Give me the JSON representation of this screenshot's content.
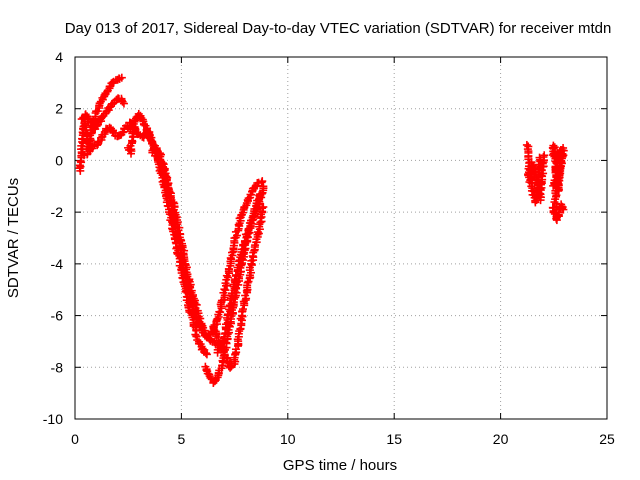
{
  "chart_data": {
    "type": "scatter",
    "title": "Day 013 of 2017, Sidereal Day-to-day VTEC variation (SDTVAR) for receiver mtdn",
    "xlabel": "GPS time / hours",
    "ylabel": "SDTVAR / TECUs",
    "xlim": [
      0,
      25
    ],
    "ylim": [
      -10,
      4
    ],
    "xticks": [
      0,
      5,
      10,
      15,
      20,
      25
    ],
    "yticks": [
      -10,
      -8,
      -6,
      -4,
      -2,
      0,
      2,
      4
    ],
    "grid": true,
    "marker": "+",
    "marker_color": "#ff0000",
    "series": [
      {
        "name": "SDTVAR",
        "segments": [
          [
            [
              0.25,
              -0.4
            ],
            [
              0.35,
              0.8
            ],
            [
              0.45,
              1.5
            ],
            [
              0.55,
              1.0
            ],
            [
              0.65,
              0.4
            ],
            [
              0.8,
              1.2
            ],
            [
              1.0,
              1.8
            ],
            [
              1.2,
              2.2
            ],
            [
              1.4,
              2.5
            ],
            [
              1.6,
              2.8
            ],
            [
              1.8,
              3.0
            ],
            [
              2.0,
              3.15
            ],
            [
              2.2,
              3.2
            ]
          ],
          [
            [
              0.3,
              1.6
            ],
            [
              0.5,
              1.8
            ],
            [
              0.7,
              1.5
            ],
            [
              0.9,
              1.2
            ],
            [
              1.1,
              1.4
            ],
            [
              1.3,
              1.7
            ],
            [
              1.5,
              1.9
            ],
            [
              1.7,
              2.1
            ],
            [
              1.9,
              2.3
            ],
            [
              2.1,
              2.4
            ],
            [
              2.3,
              2.2
            ]
          ],
          [
            [
              0.4,
              0.2
            ],
            [
              0.6,
              0.3
            ],
            [
              0.8,
              0.5
            ],
            [
              1.0,
              0.6
            ],
            [
              1.2,
              0.8
            ],
            [
              1.4,
              1.1
            ],
            [
              1.6,
              1.3
            ],
            [
              1.8,
              1.1
            ],
            [
              2.0,
              0.9
            ],
            [
              2.2,
              1.0
            ],
            [
              2.4,
              1.3
            ],
            [
              2.6,
              1.2
            ]
          ],
          [
            [
              2.5,
              0.5
            ],
            [
              2.6,
              0.3
            ],
            [
              2.7,
              0.8
            ],
            [
              2.8,
              1.4
            ],
            [
              3.0,
              1.8
            ],
            [
              3.2,
              1.5
            ],
            [
              3.4,
              1.2
            ],
            [
              3.6,
              0.8
            ],
            [
              3.8,
              0.4
            ],
            [
              4.0,
              0.0
            ],
            [
              4.2,
              -0.4
            ],
            [
              4.4,
              -1.0
            ],
            [
              4.6,
              -1.6
            ],
            [
              4.8,
              -2.4
            ],
            [
              5.0,
              -3.2
            ],
            [
              5.2,
              -4.0
            ],
            [
              5.4,
              -4.8
            ],
            [
              5.6,
              -5.4
            ],
            [
              5.8,
              -6.0
            ],
            [
              6.0,
              -6.5
            ],
            [
              6.2,
              -6.8
            ],
            [
              6.4,
              -7.0
            ],
            [
              6.6,
              -7.1
            ]
          ],
          [
            [
              2.6,
              1.5
            ],
            [
              2.8,
              1.2
            ],
            [
              3.0,
              1.0
            ],
            [
              3.2,
              0.9
            ],
            [
              3.4,
              1.2
            ],
            [
              3.6,
              0.7
            ],
            [
              3.8,
              0.2
            ],
            [
              4.0,
              -0.3
            ],
            [
              4.2,
              -1.0
            ],
            [
              4.4,
              -1.8
            ],
            [
              4.6,
              -2.6
            ],
            [
              4.8,
              -3.4
            ],
            [
              5.0,
              -4.2
            ],
            [
              5.2,
              -5.0
            ],
            [
              5.4,
              -5.8
            ],
            [
              5.6,
              -6.4
            ],
            [
              5.8,
              -7.0
            ],
            [
              6.0,
              -7.3
            ],
            [
              6.2,
              -7.5
            ]
          ],
          [
            [
              3.6,
              0.3
            ],
            [
              3.8,
              0.5
            ],
            [
              4.0,
              0.2
            ],
            [
              4.2,
              -0.4
            ],
            [
              4.4,
              -1.2
            ],
            [
              4.6,
              -2.0
            ],
            [
              4.8,
              -2.9
            ],
            [
              5.0,
              -3.8
            ],
            [
              5.2,
              -4.6
            ],
            [
              5.4,
              -5.3
            ],
            [
              5.6,
              -5.9
            ],
            [
              5.8,
              -6.3
            ],
            [
              6.0,
              -6.6
            ],
            [
              6.2,
              -6.8
            ],
            [
              6.4,
              -6.7
            ],
            [
              6.6,
              -6.4
            ],
            [
              6.8,
              -5.9
            ],
            [
              7.0,
              -5.2
            ],
            [
              7.2,
              -4.4
            ],
            [
              7.4,
              -3.6
            ],
            [
              7.6,
              -2.8
            ],
            [
              7.8,
              -2.2
            ],
            [
              8.0,
              -1.8
            ],
            [
              8.2,
              -1.4
            ],
            [
              8.4,
              -1.1
            ],
            [
              8.6,
              -0.9
            ],
            [
              8.8,
              -0.8
            ]
          ],
          [
            [
              6.1,
              -8.0
            ],
            [
              6.3,
              -8.3
            ],
            [
              6.5,
              -8.6
            ],
            [
              6.7,
              -8.4
            ],
            [
              6.9,
              -7.9
            ],
            [
              7.1,
              -7.2
            ],
            [
              7.3,
              -6.3
            ],
            [
              7.5,
              -5.4
            ],
            [
              7.7,
              -4.5
            ],
            [
              7.9,
              -3.7
            ],
            [
              8.1,
              -3.0
            ],
            [
              8.3,
              -2.4
            ],
            [
              8.5,
              -1.8
            ],
            [
              8.7,
              -1.3
            ]
          ],
          [
            [
              6.5,
              -6.4
            ],
            [
              6.7,
              -6.9
            ],
            [
              6.9,
              -7.3
            ],
            [
              7.1,
              -7.6
            ],
            [
              7.3,
              -8.0
            ],
            [
              7.5,
              -7.8
            ],
            [
              7.7,
              -6.8
            ],
            [
              7.9,
              -5.8
            ],
            [
              8.1,
              -4.9
            ],
            [
              8.3,
              -4.0
            ],
            [
              8.5,
              -3.2
            ],
            [
              8.7,
              -2.5
            ],
            [
              8.85,
              -1.8
            ]
          ],
          [
            [
              6.7,
              -7.4
            ],
            [
              6.9,
              -7.1
            ],
            [
              7.1,
              -6.5
            ],
            [
              7.3,
              -5.6
            ],
            [
              7.5,
              -4.8
            ],
            [
              7.7,
              -4.0
            ],
            [
              7.9,
              -3.4
            ],
            [
              8.1,
              -2.8
            ],
            [
              8.3,
              -2.3
            ],
            [
              8.5,
              -2.0
            ],
            [
              8.7,
              -1.5
            ],
            [
              8.85,
              -1.0
            ]
          ],
          [
            [
              21.25,
              0.6
            ],
            [
              21.3,
              0.2
            ],
            [
              21.35,
              -0.3
            ],
            [
              21.4,
              -0.8
            ],
            [
              21.5,
              -0.1
            ],
            [
              21.6,
              -0.4
            ],
            [
              21.7,
              -0.8
            ],
            [
              21.8,
              -1.2
            ],
            [
              21.85,
              -1.5
            ],
            [
              21.9,
              -1.1
            ],
            [
              21.95,
              -0.5
            ],
            [
              22.0,
              -0.2
            ],
            [
              22.05,
              0.2
            ]
          ],
          [
            [
              21.3,
              -0.5
            ],
            [
              21.45,
              -0.9
            ],
            [
              21.55,
              -1.3
            ],
            [
              21.65,
              -1.6
            ],
            [
              21.75,
              -1.1
            ],
            [
              21.85,
              0.1
            ],
            [
              21.95,
              -0.1
            ]
          ],
          [
            [
              22.45,
              0.2
            ],
            [
              22.5,
              0.6
            ],
            [
              22.55,
              0.3
            ],
            [
              22.6,
              -0.2
            ],
            [
              22.65,
              -0.8
            ],
            [
              22.7,
              -1.2
            ],
            [
              22.75,
              -0.6
            ],
            [
              22.8,
              -0.1
            ],
            [
              22.85,
              0.3
            ],
            [
              22.9,
              0.5
            ],
            [
              22.95,
              0.2
            ]
          ],
          [
            [
              22.45,
              -1.8
            ],
            [
              22.55,
              -2.1
            ],
            [
              22.65,
              -2.3
            ],
            [
              22.75,
              -2.0
            ],
            [
              22.85,
              -1.7
            ],
            [
              22.95,
              -1.9
            ]
          ],
          [
            [
              22.5,
              -1.0
            ],
            [
              22.6,
              -0.5
            ],
            [
              22.7,
              0.0
            ],
            [
              22.8,
              0.4
            ],
            [
              22.9,
              0.1
            ],
            [
              22.55,
              -1.5
            ],
            [
              22.65,
              -1.9
            ]
          ]
        ]
      }
    ]
  }
}
